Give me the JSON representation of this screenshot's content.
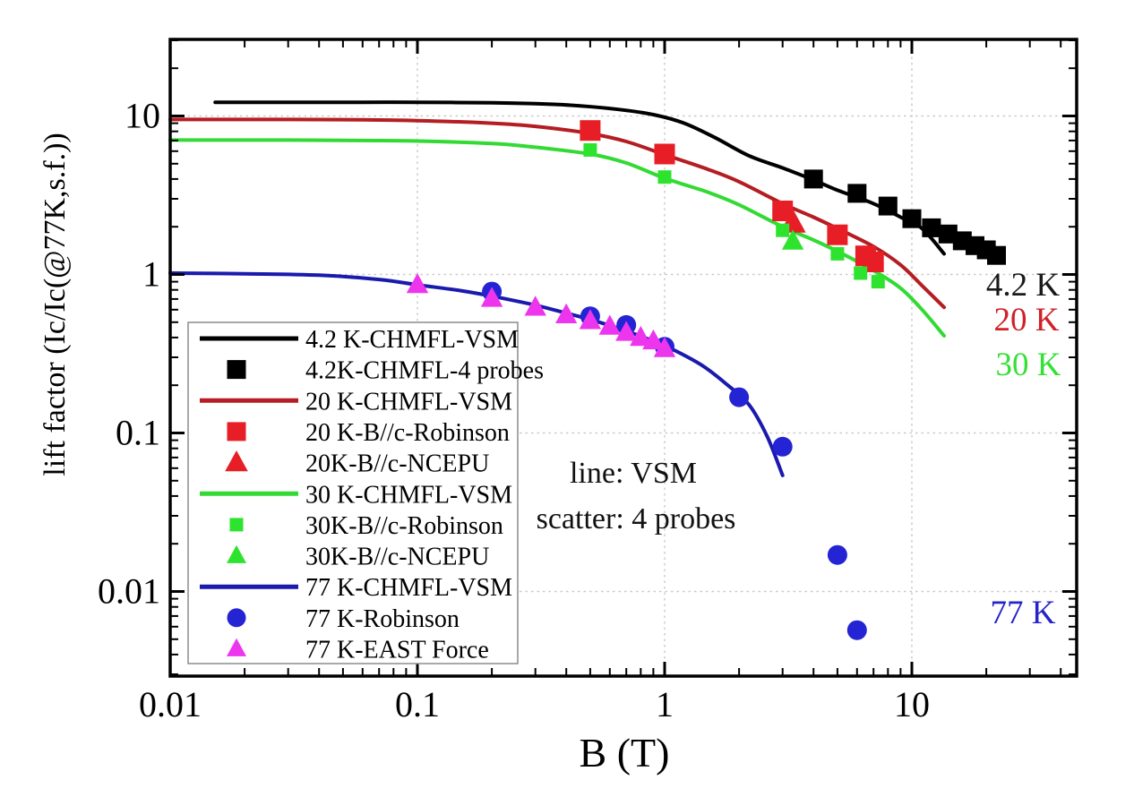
{
  "chart_data": {
    "type": "line+scatter",
    "title": "",
    "xlabel": "B (T)",
    "ylabel": "lift factor (Ic/Ic(@77K,s.f.))",
    "x_scale": "log",
    "y_scale": "log",
    "xlim": [
      0.01,
      46.5
    ],
    "ylim": [
      0.0029,
      30
    ],
    "x_ticks": [
      0.01,
      0.1,
      1,
      10
    ],
    "x_tick_labels": [
      "0.01",
      "0.1",
      "1",
      "10"
    ],
    "y_ticks": [
      10,
      1,
      0.1,
      0.01
    ],
    "y_tick_labels": [
      "10",
      "1",
      "0.1",
      "0.01"
    ],
    "grid": {
      "style": "dotted",
      "color": "#c9c9c9",
      "x_values": [
        0.1,
        1,
        10
      ],
      "y_values": [
        10,
        1,
        0.1,
        0.01
      ]
    },
    "series": [
      {
        "name": "4.2 K-CHMFL-VSM",
        "type": "line",
        "color": "#000000",
        "width": 4,
        "points": [
          [
            0.0152,
            12.2
          ],
          [
            0.03,
            12.2
          ],
          [
            0.06,
            12.2
          ],
          [
            0.1,
            12.2
          ],
          [
            0.2,
            12.1
          ],
          [
            0.3,
            11.95
          ],
          [
            0.45,
            11.6
          ],
          [
            0.65,
            11.0
          ],
          [
            0.9,
            10.2
          ],
          [
            1.2,
            9.0
          ],
          [
            1.6,
            7.3
          ],
          [
            2.2,
            5.6
          ],
          [
            3,
            4.7
          ],
          [
            4,
            3.95
          ],
          [
            5,
            3.4
          ],
          [
            7,
            2.8
          ],
          [
            9,
            2.3
          ],
          [
            11,
            1.95
          ],
          [
            13.5,
            1.35
          ]
        ]
      },
      {
        "name": "4.2K-CHMFL-4 probes",
        "type": "scatter",
        "marker": "square",
        "color": "#000000",
        "size": 21,
        "points": [
          [
            4,
            4.0
          ],
          [
            6,
            3.25
          ],
          [
            8,
            2.7
          ],
          [
            10,
            2.25
          ],
          [
            12,
            1.97
          ],
          [
            14,
            1.8
          ],
          [
            16,
            1.63
          ],
          [
            18,
            1.52
          ],
          [
            20,
            1.43
          ],
          [
            22,
            1.32
          ]
        ]
      },
      {
        "name": "20 K-CHMFL-VSM",
        "type": "line",
        "color": "#b41d22",
        "width": 4,
        "points": [
          [
            0.01,
            9.5
          ],
          [
            0.03,
            9.5
          ],
          [
            0.06,
            9.45
          ],
          [
            0.1,
            9.35
          ],
          [
            0.2,
            9.0
          ],
          [
            0.3,
            8.6
          ],
          [
            0.5,
            7.75
          ],
          [
            0.7,
            6.9
          ],
          [
            1,
            5.7
          ],
          [
            1.5,
            4.6
          ],
          [
            2,
            3.85
          ],
          [
            3,
            2.8
          ],
          [
            4,
            2.3
          ],
          [
            5,
            1.95
          ],
          [
            7,
            1.5
          ],
          [
            9,
            1.15
          ],
          [
            11,
            0.85
          ],
          [
            13.5,
            0.62
          ]
        ]
      },
      {
        "name": "20 K-B//c-Robinson",
        "type": "scatter",
        "marker": "square",
        "color": "#e81e26",
        "size": 23,
        "points": [
          [
            0.5,
            8.1
          ],
          [
            1,
            5.75
          ],
          [
            3,
            2.52
          ],
          [
            5,
            1.78
          ],
          [
            6.5,
            1.31
          ],
          [
            7,
            1.2
          ]
        ]
      },
      {
        "name": "20K-B//c-NCEPU",
        "type": "scatter",
        "marker": "triangle",
        "color": "#e81e26",
        "size": 25,
        "points": [
          [
            3.3,
            2.12
          ]
        ]
      },
      {
        "name": "30 K-CHMFL-VSM",
        "type": "line",
        "color": "#33da33",
        "width": 4,
        "points": [
          [
            0.01,
            7.05
          ],
          [
            0.03,
            7.05
          ],
          [
            0.06,
            7.0
          ],
          [
            0.1,
            6.95
          ],
          [
            0.2,
            6.7
          ],
          [
            0.3,
            6.35
          ],
          [
            0.5,
            5.75
          ],
          [
            0.7,
            5.05
          ],
          [
            1,
            4.05
          ],
          [
            1.5,
            3.3
          ],
          [
            2,
            2.75
          ],
          [
            3,
            2.0
          ],
          [
            4,
            1.65
          ],
          [
            5,
            1.4
          ],
          [
            7,
            1.06
          ],
          [
            9,
            0.82
          ],
          [
            11,
            0.6
          ],
          [
            13.5,
            0.41
          ]
        ]
      },
      {
        "name": "30K-B//c-Robinson",
        "type": "scatter",
        "marker": "square",
        "color": "#2ee32e",
        "size": 15,
        "points": [
          [
            0.5,
            6.1
          ],
          [
            1,
            4.12
          ],
          [
            3,
            1.9
          ],
          [
            5,
            1.35
          ],
          [
            6.2,
            1.02
          ],
          [
            7.3,
            0.9
          ]
        ]
      },
      {
        "name": "30K-B//c-NCEPU",
        "type": "scatter",
        "marker": "triangle",
        "color": "#2ee32e",
        "size": 21,
        "points": [
          [
            3.3,
            1.62
          ]
        ]
      },
      {
        "name": "77 K-CHMFL-VSM",
        "type": "line",
        "color": "#1a1aad",
        "width": 4,
        "points": [
          [
            0.01,
            1.02
          ],
          [
            0.02,
            1.01
          ],
          [
            0.04,
            0.99
          ],
          [
            0.07,
            0.93
          ],
          [
            0.1,
            0.86
          ],
          [
            0.15,
            0.79
          ],
          [
            0.2,
            0.73
          ],
          [
            0.3,
            0.64
          ],
          [
            0.4,
            0.57
          ],
          [
            0.5,
            0.52
          ],
          [
            0.7,
            0.44
          ],
          [
            1,
            0.355
          ],
          [
            1.4,
            0.27
          ],
          [
            1.8,
            0.2
          ],
          [
            2.2,
            0.15
          ],
          [
            2.6,
            0.095
          ],
          [
            3,
            0.054
          ]
        ]
      },
      {
        "name": "77 K-Robinson",
        "type": "scatter",
        "marker": "circle",
        "color": "#2424d4",
        "size": 22,
        "points": [
          [
            0.2,
            0.78
          ],
          [
            0.5,
            0.545
          ],
          [
            0.7,
            0.48
          ],
          [
            1,
            0.35
          ],
          [
            2,
            0.168
          ],
          [
            3,
            0.082
          ],
          [
            5,
            0.017
          ],
          [
            6,
            0.0057
          ]
        ]
      },
      {
        "name": "77 K-EAST Force",
        "type": "scatter",
        "marker": "triangle",
        "color": "#ee35ee",
        "size": 21,
        "points": [
          [
            0.1,
            0.86
          ],
          [
            0.2,
            0.705
          ],
          [
            0.3,
            0.62
          ],
          [
            0.4,
            0.555
          ],
          [
            0.5,
            0.51
          ],
          [
            0.6,
            0.47
          ],
          [
            0.7,
            0.43
          ],
          [
            0.8,
            0.4
          ],
          [
            0.9,
            0.38
          ],
          [
            1,
            0.34
          ]
        ]
      }
    ],
    "annotations": [
      {
        "text": "line: VSM"
      },
      {
        "text": "scatter: 4 probes"
      }
    ],
    "curve_labels": [
      {
        "text": "4.2 K",
        "color": "#1a1a1a"
      },
      {
        "text": "20 K",
        "color": "#d02028"
      },
      {
        "text": "30 K",
        "color": "#35e035"
      },
      {
        "text": "77 K",
        "color": "#2424c8"
      }
    ],
    "legend_position": "lower-left"
  },
  "legend": {
    "items": [
      {
        "label": "4.2 K-CHMFL-VSM",
        "swatch": "line",
        "color": "#000000",
        "size": 21
      },
      {
        "label": "4.2K-CHMFL-4 probes",
        "swatch": "square",
        "color": "#000000",
        "size": 21
      },
      {
        "label": "20 K-CHMFL-VSM",
        "swatch": "line",
        "color": "#b41d22",
        "size": 21
      },
      {
        "label": "20 K-B//c-Robinson",
        "swatch": "square",
        "color": "#e81e26",
        "size": 21
      },
      {
        "label": "20K-B//c-NCEPU",
        "swatch": "triangle",
        "color": "#e81e26",
        "size": 22
      },
      {
        "label": "30 K-CHMFL-VSM",
        "swatch": "line",
        "color": "#33da33",
        "size": 21
      },
      {
        "label": "30K-B//c-Robinson",
        "swatch": "square",
        "color": "#2ee32e",
        "size": 15
      },
      {
        "label": "30K-B//c-NCEPU",
        "swatch": "triangle",
        "color": "#2ee32e",
        "size": 19
      },
      {
        "label": "77 K-CHMFL-VSM",
        "swatch": "line",
        "color": "#1a1aad",
        "size": 21
      },
      {
        "label": "77 K-Robinson",
        "swatch": "circle",
        "color": "#2424d4",
        "size": 21
      },
      {
        "label": "77 K-EAST Force",
        "swatch": "triangle",
        "color": "#ee35ee",
        "size": 19
      }
    ]
  }
}
